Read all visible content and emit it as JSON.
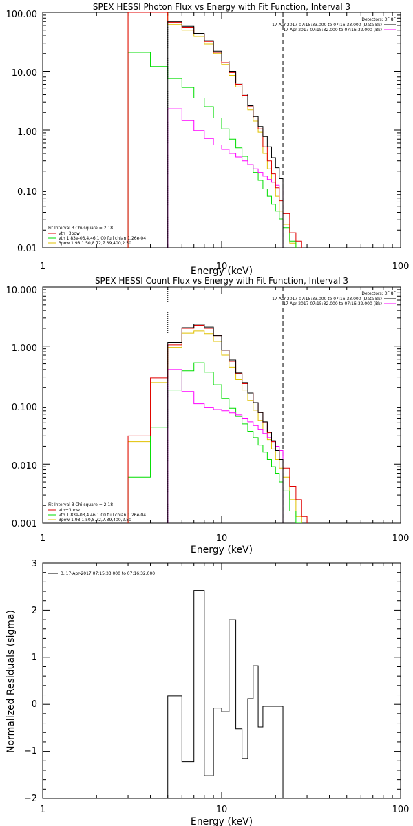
{
  "chart_data": [
    {
      "type": "line",
      "title": "SPEX HESSI Photon Flux vs Energy with Fit Function, Interval 3",
      "xlabel": "Energy (keV)",
      "ylabel": "",
      "xscale": "log",
      "yscale": "log",
      "xlim": [
        1,
        100
      ],
      "ylim": [
        0.01,
        100
      ],
      "x_ticks": [
        "1",
        "10",
        "100"
      ],
      "y_ticks": [
        "0.01",
        "0.10",
        "1.00",
        "10.00",
        "100.00"
      ],
      "legend_top": {
        "header": "Detectors: 3F 8F",
        "entries": [
          {
            "text": "17-Apr-2017 07:15:33.000 to 07:16:33.000 (Data-Bk)",
            "color": "#000000"
          },
          {
            "text": "17-Apr-2017 07:15:32.000 to 07:16:32.000 (Bk)",
            "color": "#ff00ff"
          }
        ]
      },
      "legend_bottom": {
        "header": "Fit Interval 3   Chi-square = 2.18",
        "entries": [
          {
            "text": "vth+3pow",
            "color": "#e00000"
          },
          {
            "text": "vth 1.83e-03,4.46,1.00  full chian 1.26e-04",
            "color": "#00dd00"
          },
          {
            "text": "3pow  1.98,1.50,8.72,7.39,400,2.50",
            "color": "#e0c000"
          }
        ]
      },
      "vlines": [
        {
          "x": 5.0,
          "style": "dotted",
          "color": "#000000"
        },
        {
          "x": 22.0,
          "style": "dashed",
          "color": "#000000"
        }
      ],
      "bin_edges": [
        3.0,
        4.0,
        5.0,
        6.0,
        7.0,
        8.0,
        9.0,
        10.0,
        11.0,
        12.0,
        13.0,
        14.0,
        15.0,
        16.0,
        17.0,
        18.0,
        19.0,
        20.0,
        21.0,
        22.0,
        24.0,
        26.0,
        28.0
      ],
      "series": [
        {
          "name": "Data-Bk",
          "color": "#000000",
          "start": 5.0,
          "end": 22.0,
          "values": [
            70,
            58,
            44,
            33,
            22,
            15,
            10,
            6.3,
            4.1,
            2.6,
            1.7,
            1.15,
            0.78,
            0.52,
            0.34,
            0.23,
            0.15
          ]
        },
        {
          "name": "Bk",
          "color": "#ff00ff",
          "start": 5.0,
          "end": 22.0,
          "values": [
            2.3,
            1.45,
            0.98,
            0.72,
            0.56,
            0.47,
            0.4,
            0.35,
            0.3,
            0.26,
            0.22,
            0.19,
            0.165,
            0.145,
            0.13,
            0.115,
            0.1
          ]
        },
        {
          "name": "vth+3pow",
          "color": "#e00000",
          "start": 3.0,
          "end": 28.0,
          "values": [
            110,
            110,
            68,
            56,
            43,
            32,
            21,
            14,
            9.5,
            6.0,
            3.9,
            2.5,
            1.6,
            1.05,
            0.52,
            0.3,
            0.18,
            0.105,
            0.063,
            0.038,
            0.018,
            0.013
          ]
        },
        {
          "name": "vth",
          "color": "#00dd00",
          "start": 3.0,
          "end": 26.0,
          "values": [
            21,
            12,
            7.5,
            5.3,
            3.5,
            2.5,
            1.6,
            1.05,
            0.7,
            0.5,
            0.36,
            0.26,
            0.19,
            0.14,
            0.1,
            0.075,
            0.055,
            0.042,
            0.031,
            0.022,
            0.013
          ]
        },
        {
          "name": "3pow",
          "color": "#e0c000",
          "start": 3.0,
          "end": 26.0,
          "values": [
            110,
            110,
            62,
            50,
            39,
            29,
            20,
            13,
            8.5,
            5.4,
            3.5,
            2.2,
            1.42,
            0.92,
            0.4,
            0.22,
            0.13,
            0.075,
            0.042,
            0.025,
            0.012
          ]
        }
      ]
    },
    {
      "type": "line",
      "title": "SPEX HESSI Count Flux vs Energy with Fit Function, Interval 3",
      "xlabel": "Energy (keV)",
      "ylabel": "",
      "xscale": "log",
      "yscale": "log",
      "xlim": [
        1,
        100
      ],
      "ylim": [
        0.001,
        10
      ],
      "x_ticks": [
        "1",
        "10",
        "100"
      ],
      "y_ticks": [
        "0.001",
        "0.010",
        "0.100",
        "1.000",
        "10.000"
      ],
      "legend_top": {
        "header": "Detectors: 3F 8F",
        "entries": [
          {
            "text": "17-Apr-2017 07:15:33.000 to 07:16:33.000 (Data-Bk)",
            "color": "#000000"
          },
          {
            "text": "17-Apr-2017 07:15:32.000 to 07:16:32.000 (Bk)",
            "color": "#ff00ff"
          }
        ]
      },
      "legend_bottom": {
        "header": "Fit Interval 3   Chi-square = 2.18",
        "entries": [
          {
            "text": "vth+3pow",
            "color": "#e00000"
          },
          {
            "text": "vth 1.83e-03,4.46,1.00  full chian 1.26e-04",
            "color": "#00dd00"
          },
          {
            "text": "3pow  1.98,1.50,8.72,7.39,400,2.50",
            "color": "#e0c000"
          }
        ]
      },
      "vlines": [
        {
          "x": 5.0,
          "style": "dotted",
          "color": "#000000"
        },
        {
          "x": 22.0,
          "style": "dashed",
          "color": "#000000"
        }
      ],
      "bin_edges": [
        3.0,
        4.0,
        5.0,
        6.0,
        7.0,
        8.0,
        9.0,
        10.0,
        11.0,
        12.0,
        13.0,
        14.0,
        15.0,
        16.0,
        17.0,
        18.0,
        19.0,
        20.0,
        21.0,
        22.0,
        24.0,
        26.0,
        28.0,
        30.0
      ],
      "series": [
        {
          "name": "Data-Bk",
          "color": "#000000",
          "start": 5.0,
          "end": 22.0,
          "values": [
            1.15,
            2.05,
            2.35,
            2.1,
            1.5,
            0.85,
            0.58,
            0.35,
            0.24,
            0.16,
            0.11,
            0.075,
            0.052,
            0.035,
            0.025,
            0.017,
            0.012
          ]
        },
        {
          "name": "Bk",
          "color": "#ff00ff",
          "start": 5.0,
          "end": 22.0,
          "values": [
            0.4,
            0.17,
            0.105,
            0.09,
            0.084,
            0.08,
            0.074,
            0.068,
            0.06,
            0.052,
            0.045,
            0.039,
            0.033,
            0.028,
            0.024,
            0.02,
            0.017
          ]
        },
        {
          "name": "vth+3pow",
          "color": "#e00000",
          "start": 3.0,
          "end": 30.0,
          "values": [
            0.03,
            0.29,
            1.05,
            2.0,
            2.25,
            2.0,
            1.5,
            0.85,
            0.55,
            0.34,
            0.23,
            0.16,
            0.11,
            0.075,
            0.05,
            0.034,
            0.024,
            0.017,
            0.012,
            0.0085,
            0.0042,
            0.0025,
            0.0013
          ]
        },
        {
          "name": "vth",
          "color": "#00dd00",
          "start": 3.0,
          "end": 28.0,
          "values": [
            0.006,
            0.042,
            0.18,
            0.38,
            0.52,
            0.36,
            0.22,
            0.13,
            0.088,
            0.064,
            0.048,
            0.036,
            0.028,
            0.021,
            0.016,
            0.012,
            0.009,
            0.007,
            0.005,
            0.0035,
            0.0016,
            0.001
          ]
        },
        {
          "name": "3pow",
          "color": "#e0c000",
          "start": 3.0,
          "end": 28.0,
          "values": [
            0.024,
            0.24,
            0.95,
            1.65,
            1.8,
            1.62,
            1.2,
            0.7,
            0.44,
            0.27,
            0.18,
            0.12,
            0.082,
            0.055,
            0.038,
            0.026,
            0.018,
            0.012,
            0.0085,
            0.006,
            0.0025,
            0.0013
          ]
        }
      ]
    },
    {
      "type": "line",
      "title": "",
      "xlabel": "Energy (keV)",
      "ylabel": "Normalized Residuals (sigma)",
      "xscale": "log",
      "yscale": "linear",
      "xlim": [
        1,
        100
      ],
      "ylim": [
        -2,
        3
      ],
      "x_ticks": [
        "1",
        "10",
        "100"
      ],
      "y_ticks": [
        "−2",
        "−1",
        "0",
        "1",
        "2",
        "3"
      ],
      "legend": {
        "entries": [
          {
            "text": "3, 17-Apr-2017 07:15:33.000 to 07:16:32.000",
            "color": "#000000"
          }
        ]
      },
      "bin_edges": [
        5.0,
        6.0,
        7.0,
        8.0,
        9.0,
        10.0,
        11.0,
        12.0,
        13.0,
        14.0,
        15.0,
        16.0,
        17.0,
        18.0,
        19.0,
        20.0,
        21.0,
        22.0
      ],
      "series": [
        {
          "name": "",
          "color": "#000000",
          "start": 5.0,
          "end": 22.0,
          "values": [
            0.18,
            -1.22,
            2.42,
            -1.52,
            -0.08,
            -0.16,
            1.8,
            -0.52,
            -1.15,
            0.12,
            0.82,
            -0.48,
            -0.04,
            -0.04,
            -0.04,
            -0.04,
            -0.04
          ]
        }
      ]
    }
  ]
}
